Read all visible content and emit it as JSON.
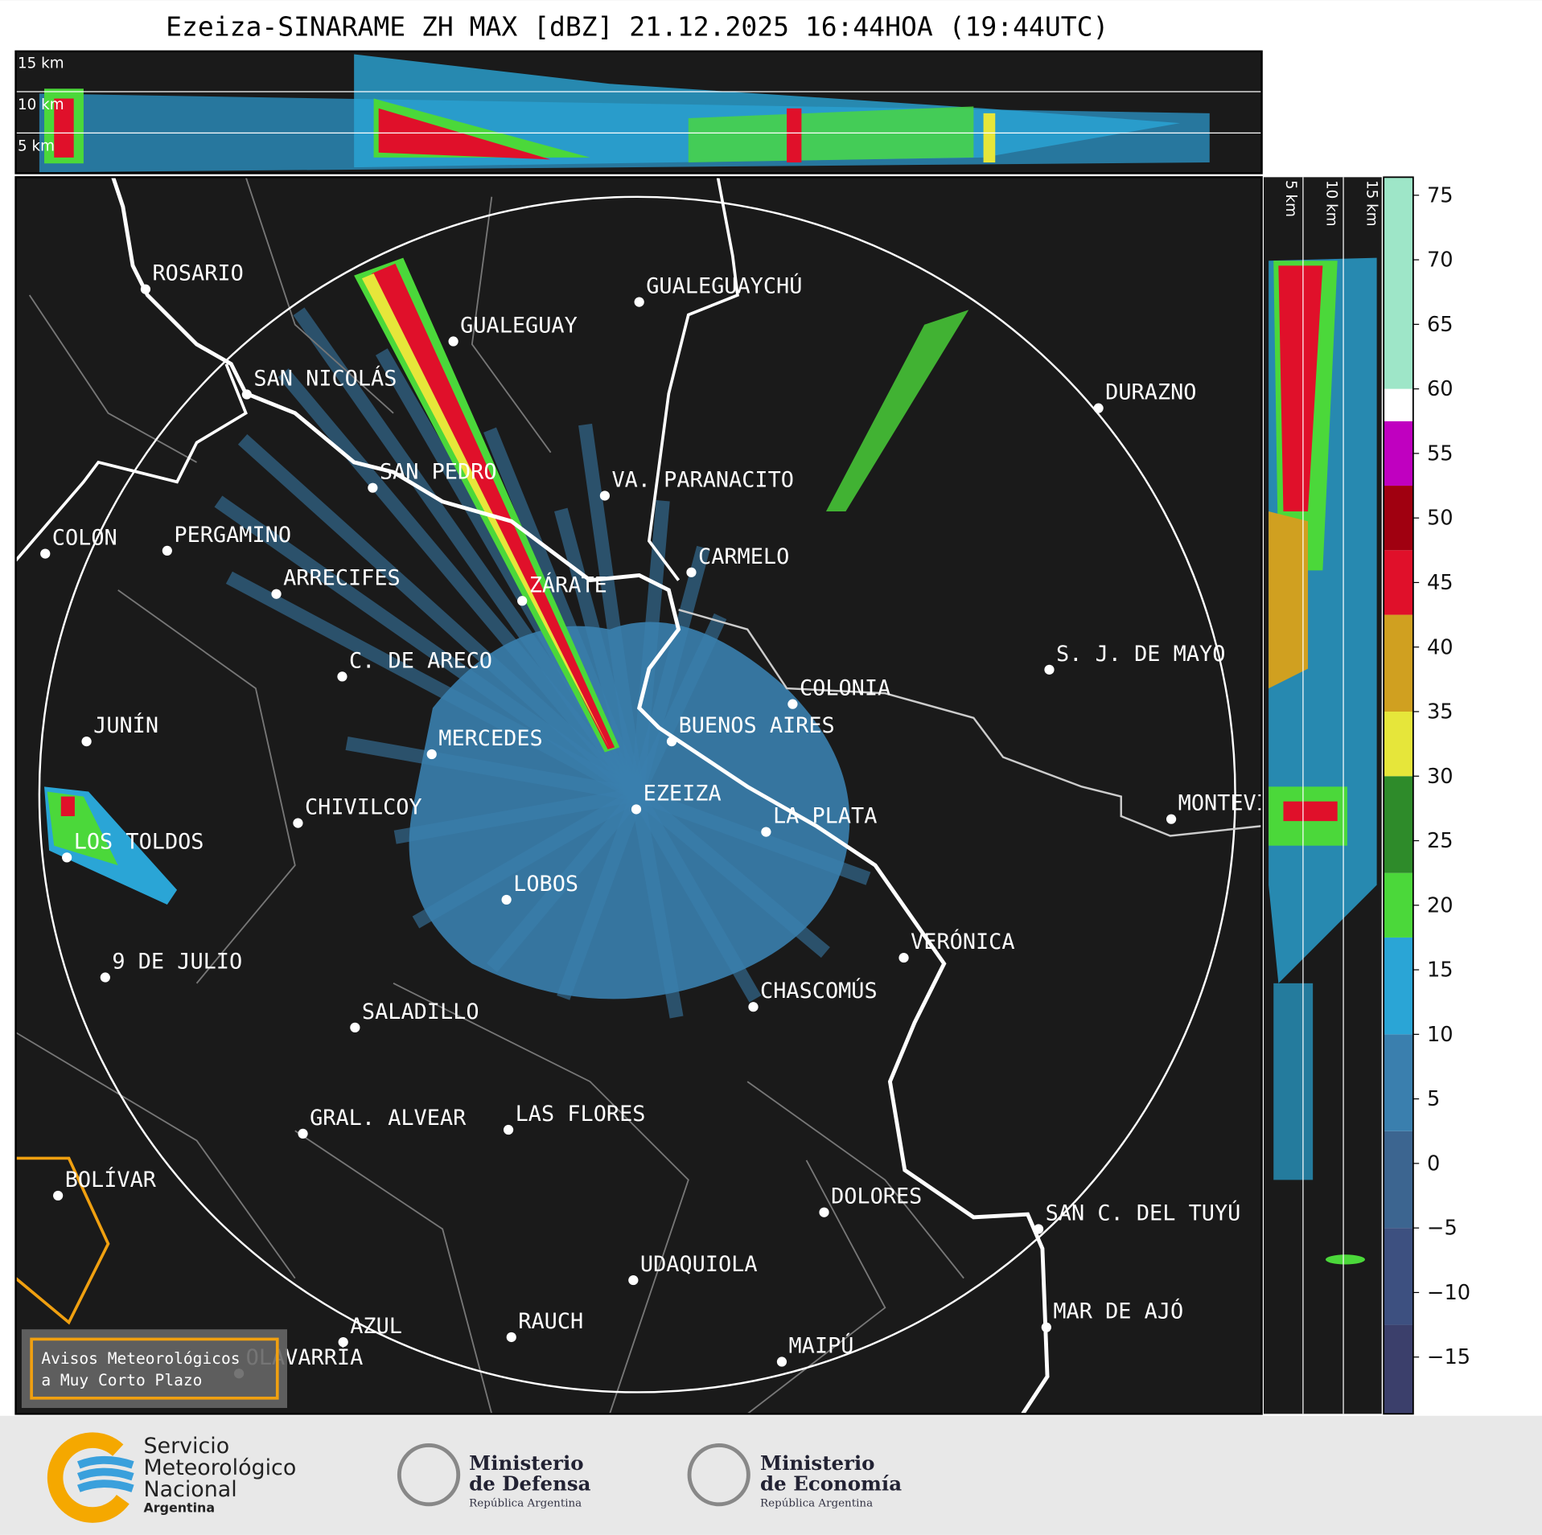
{
  "title": "Ezeiza-SINARAME ZH MAX [dBZ] 21.12.2025 16:44HOA (19:44UTC)",
  "cities": [
    {
      "name": "ROSARIO"
    },
    {
      "name": "GUALEGUAYCHÚ"
    },
    {
      "name": "GUALEGUAY"
    },
    {
      "name": "SAN NICOLÁS"
    },
    {
      "name": "DURAZNO"
    },
    {
      "name": "SAN PEDRO"
    },
    {
      "name": "VA. PARANACITO"
    },
    {
      "name": "COLON"
    },
    {
      "name": "PERGAMINO"
    },
    {
      "name": "CARMELO"
    },
    {
      "name": "ARRECIFES"
    },
    {
      "name": "ZÁRATE"
    },
    {
      "name": "C. DE ARECO"
    },
    {
      "name": "S. J. DE MAYO"
    },
    {
      "name": "COLONIA"
    },
    {
      "name": "JUNÍN"
    },
    {
      "name": "BUENOS AIRES"
    },
    {
      "name": "MERCEDES"
    },
    {
      "name": "EZEIZA"
    },
    {
      "name": "CHIVILCOY"
    },
    {
      "name": "MONTEVIDEO"
    },
    {
      "name": "LA PLATA"
    },
    {
      "name": "LOS TOLDOS"
    },
    {
      "name": "LOBOS"
    },
    {
      "name": "VERÓNICA"
    },
    {
      "name": "9 DE JULIO"
    },
    {
      "name": "CHASCOMÚS"
    },
    {
      "name": "SALADILLO"
    },
    {
      "name": "LAS FLORES"
    },
    {
      "name": "GRAL. ALVEAR"
    },
    {
      "name": "BOLÍVAR"
    },
    {
      "name": "DOLORES"
    },
    {
      "name": "SAN C. DEL TUYÚ"
    },
    {
      "name": "UDAQUIOLA"
    },
    {
      "name": "MAR DE AJÓ"
    },
    {
      "name": "AZUL"
    },
    {
      "name": "RAUCH"
    },
    {
      "name": "MAIPÚ"
    },
    {
      "name": "OLAVARRÍA"
    }
  ],
  "top_panel": {
    "height_labels": [
      "15 km",
      "10 km",
      "5 km"
    ]
  },
  "side_panel": {
    "height_labels": [
      "5 km",
      "10 km",
      "15 km"
    ]
  },
  "colorbar": {
    "lim": [
      -19.4,
      76.4
    ],
    "ticks": [
      75,
      70,
      65,
      60,
      55,
      50,
      45,
      40,
      35,
      30,
      25,
      20,
      15,
      10,
      5,
      0,
      {
        "value": -5,
        "label": "−5"
      },
      {
        "value": -10,
        "label": "−10"
      },
      {
        "value": -15,
        "label": "−15"
      }
    ],
    "bands": [
      {
        "from": -19.4,
        "to": -12.5,
        "color": "#3b3f6b"
      },
      {
        "from": -12.5,
        "to": -5,
        "color": "#3d5080"
      },
      {
        "from": -5,
        "to": 2.5,
        "color": "#3c6590"
      },
      {
        "from": 2.5,
        "to": 10,
        "color": "#3a7fae"
      },
      {
        "from": 10,
        "to": 17.5,
        "color": "#2aa5d6"
      },
      {
        "from": 17.5,
        "to": 22.5,
        "color": "#4bd83a"
      },
      {
        "from": 22.5,
        "to": 30,
        "color": "#2e8b2a"
      },
      {
        "from": 30,
        "to": 35,
        "color": "#e6e63a"
      },
      {
        "from": 35,
        "to": 42.5,
        "color": "#d0a020"
      },
      {
        "from": 42.5,
        "to": 47.5,
        "color": "#e0102a"
      },
      {
        "from": 47.5,
        "to": 52.5,
        "color": "#a00010"
      },
      {
        "from": 52.5,
        "to": 57.5,
        "color": "#c000c0"
      },
      {
        "from": 57.5,
        "to": 60,
        "color": "#ffffff"
      },
      {
        "from": 60,
        "to": 76.4,
        "color": "#9ee6c8"
      }
    ]
  },
  "notice": [
    "Avisos Meteorológicos",
    "a Muy Corto Plazo"
  ],
  "logos": {
    "smn": [
      "Servicio",
      "Meteorológico",
      "Nacional",
      "Argentina"
    ],
    "defensa": [
      "Ministerio",
      "de Defensa",
      "República Argentina"
    ],
    "economia": [
      "Ministerio",
      "de Economía",
      "República Argentina"
    ]
  }
}
